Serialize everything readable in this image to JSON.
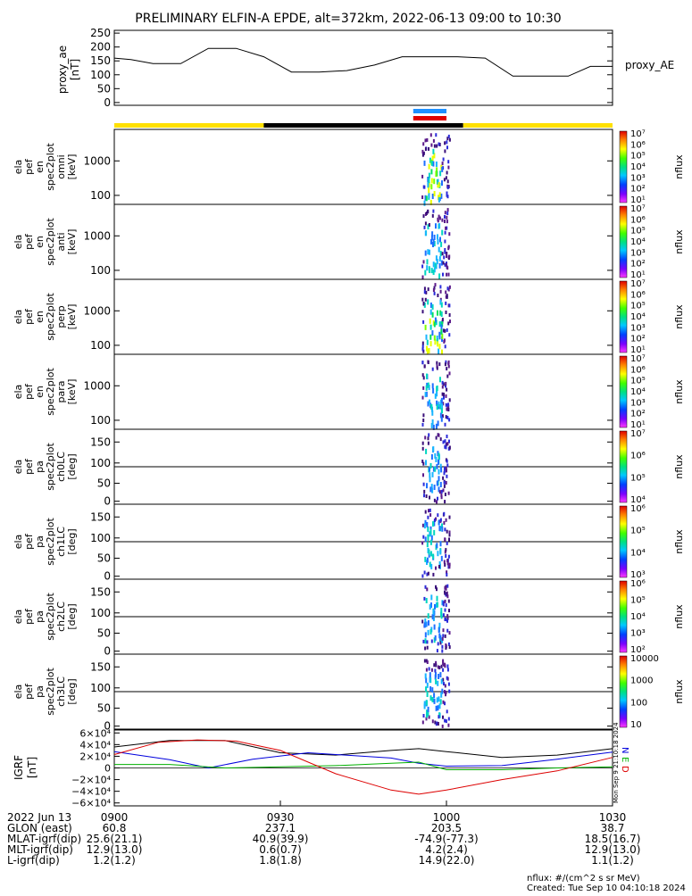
{
  "title": "PRELIMINARY ELFIN-A EPDE, alt=372km, 2022-06-13 09:00 to 10:30",
  "proxy_panel": {
    "ylabel_lines": [
      "proxy_ae",
      "[nT]"
    ],
    "right_label": "proxy_AE",
    "ticks": [
      "250",
      "200",
      "150",
      "100",
      "50",
      "0"
    ]
  },
  "spectra_panels": [
    {
      "label_lines": [
        "ela",
        "pef",
        "en",
        "spec2plot",
        "omni",
        "[keV]"
      ],
      "kind": "energy",
      "ticks": [
        "1000",
        "100"
      ],
      "cbar_ticks": [
        "10⁷",
        "10⁶",
        "10⁵",
        "10⁴",
        "10³",
        "10²",
        "10¹"
      ],
      "cbar_label": "nflux"
    },
    {
      "label_lines": [
        "ela",
        "pef",
        "en",
        "spec2plot",
        "anti",
        "[keV]"
      ],
      "kind": "energy",
      "ticks": [
        "1000",
        "100"
      ],
      "cbar_ticks": [
        "10⁷",
        "10⁶",
        "10⁵",
        "10⁴",
        "10³",
        "10²",
        "10¹"
      ],
      "cbar_label": "nflux"
    },
    {
      "label_lines": [
        "ela",
        "pef",
        "en",
        "spec2plot",
        "perp",
        "[keV]"
      ],
      "kind": "energy",
      "ticks": [
        "1000",
        "100"
      ],
      "cbar_ticks": [
        "10⁷",
        "10⁶",
        "10⁵",
        "10⁴",
        "10³",
        "10²",
        "10¹"
      ],
      "cbar_label": "nflux"
    },
    {
      "label_lines": [
        "ela",
        "pef",
        "en",
        "spec2plot",
        "para",
        "[keV]"
      ],
      "kind": "energy",
      "ticks": [
        "1000",
        "100"
      ],
      "cbar_ticks": [
        "10⁷",
        "10⁶",
        "10⁵",
        "10⁴",
        "10³",
        "10²",
        "10¹"
      ],
      "cbar_label": "nflux"
    },
    {
      "label_lines": [
        "ela",
        "pef",
        "pa",
        "spec2plot",
        "ch0LC",
        "[deg]"
      ],
      "kind": "pa",
      "ticks": [
        "150",
        "100",
        "50",
        "0"
      ],
      "cbar_ticks": [
        "10⁷",
        "10⁶",
        "10⁵",
        "10⁴"
      ],
      "cbar_label": "nflux"
    },
    {
      "label_lines": [
        "ela",
        "pef",
        "pa",
        "spec2plot",
        "ch1LC",
        "[deg]"
      ],
      "kind": "pa",
      "ticks": [
        "150",
        "100",
        "50",
        "0"
      ],
      "cbar_ticks": [
        "10⁶",
        "10⁵",
        "10⁴",
        "10³"
      ],
      "cbar_label": "nflux"
    },
    {
      "label_lines": [
        "ela",
        "pef",
        "pa",
        "spec2plot",
        "ch2LC",
        "[deg]"
      ],
      "kind": "pa",
      "ticks": [
        "150",
        "100",
        "50",
        "0"
      ],
      "cbar_ticks": [
        "10⁶",
        "10⁵",
        "10⁴",
        "10³",
        "10²"
      ],
      "cbar_label": "nflux"
    },
    {
      "label_lines": [
        "ela",
        "pef",
        "pa",
        "spec2plot",
        "ch3LC",
        "[deg]"
      ],
      "kind": "pa",
      "ticks": [
        "150",
        "100",
        "50",
        "0"
      ],
      "cbar_ticks": [
        "10000",
        "1000",
        "100",
        "10"
      ],
      "cbar_label": "nflux"
    }
  ],
  "igrf_panel": {
    "ylabel_lines": [
      "IGRF",
      "[nT]"
    ],
    "ticks": [
      "6×10⁴",
      "4×10⁴",
      "2×10⁴",
      "0",
      "−2×10⁴",
      "−4×10⁴",
      "−6×10⁴"
    ],
    "legend": [
      "N",
      "E",
      "D"
    ],
    "stamp": "Mon Sep 9 21:10:18 2024"
  },
  "time_axis": {
    "ticks": [
      "0900",
      "0930",
      "1000",
      "1030"
    ],
    "rows": [
      {
        "label": "2022 Jun 13",
        "values": [
          "0900",
          "0930",
          "1000",
          "1030"
        ]
      },
      {
        "label": "GLON (east)",
        "values": [
          "60.8",
          "237.1",
          "203.5",
          "38.7"
        ]
      },
      {
        "label": "MLAT-igrf(dip)",
        "values": [
          "25.6(21.1)",
          "40.9(39.9)",
          "-74.9(-77.3)",
          "18.5(16.7)"
        ]
      },
      {
        "label": "MLT-igrf(dip)",
        "values": [
          "12.9(13.0)",
          "0.6(0.7)",
          "4.2(2.4)",
          "12.9(13.0)"
        ]
      },
      {
        "label": "L-igrf(dip)",
        "values": [
          "1.2(1.2)",
          "1.8(1.8)",
          "14.9(22.0)",
          "1.1(1.2)"
        ]
      }
    ]
  },
  "footer": {
    "units": "nflux: #/(cm^2 s sr MeV)",
    "created": "Created: Tue Sep 10 04:10:18 2024"
  },
  "colors": {
    "north": "#0000dd",
    "east": "#00b000",
    "down": "#dd0000",
    "total": "#000000",
    "day_bar": "#ffe000",
    "night_bar": "#000000"
  },
  "chart_data": {
    "type": "line",
    "title": "PRELIMINARY ELFIN-A EPDE, alt=372km, 2022-06-13 09:00 to 10:30",
    "x_unit": "minutes after 09:00 UT",
    "xlim": [
      0,
      90
    ],
    "series": [
      {
        "name": "proxy_AE",
        "x": [
          0,
          3,
          7,
          12,
          17,
          22,
          27,
          32,
          37,
          42,
          47,
          52,
          57,
          62,
          67,
          72,
          77,
          82,
          86,
          90
        ],
        "y": [
          160,
          155,
          140,
          140,
          195,
          195,
          165,
          110,
          110,
          115,
          135,
          165,
          165,
          165,
          160,
          95,
          95,
          95,
          130,
          130
        ],
        "ylim": [
          0,
          250
        ]
      },
      {
        "name": "total",
        "x": [
          0,
          10,
          20,
          30,
          40,
          50,
          55,
          60,
          70,
          80,
          90
        ],
        "y": [
          36000,
          47000,
          47000,
          26000,
          22000,
          30000,
          33000,
          28000,
          18000,
          22000,
          33000
        ],
        "ylim": [
          -60000,
          60000
        ]
      },
      {
        "name": "N",
        "x": [
          0,
          10,
          17,
          25,
          35,
          50,
          55,
          60,
          70,
          80,
          90
        ],
        "y": [
          28000,
          14000,
          0,
          15000,
          26000,
          17000,
          8000,
          3000,
          4000,
          15000,
          27000
        ]
      },
      {
        "name": "E",
        "x": [
          0,
          10,
          20,
          30,
          40,
          50,
          55,
          60,
          70,
          80,
          90
        ],
        "y": [
          6000,
          6000,
          0,
          2000,
          4000,
          8000,
          10000,
          -3000,
          -3000,
          0,
          2000
        ]
      },
      {
        "name": "D",
        "x": [
          0,
          8,
          15,
          22,
          30,
          40,
          50,
          55,
          60,
          70,
          80,
          90
        ],
        "y": [
          23000,
          44000,
          48000,
          46000,
          30000,
          -10000,
          -38000,
          -45000,
          -38000,
          -20000,
          -5000,
          18000
        ]
      }
    ],
    "bars": {
      "day_ranges": [
        [
          0,
          27
        ],
        [
          63,
          90
        ]
      ],
      "night_range": [
        27,
        63
      ],
      "marker_blue": [
        54,
        60
      ],
      "marker_red": [
        54,
        60
      ]
    }
  }
}
